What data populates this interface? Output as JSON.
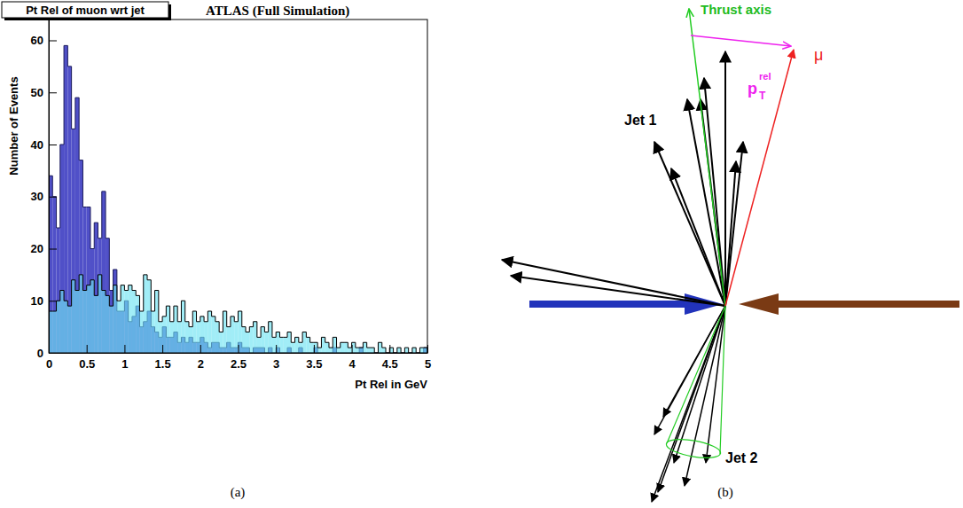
{
  "chart_data": {
    "type": "histogram",
    "title": "Pt Rel of muon wrt jet",
    "annotations": [
      "ATLAS (Full Simulation)"
    ],
    "x_label": "Pt Rel in GeV",
    "y_label": "Number of Events",
    "bins": [
      0,
      0.05,
      0.1,
      0.15,
      0.2,
      0.25,
      0.3,
      0.35,
      0.4,
      0.45,
      0.5,
      0.55,
      0.6,
      0.65,
      0.7,
      0.75,
      0.8,
      0.85,
      0.9,
      0.95,
      1,
      1.05,
      1.1,
      1.15,
      1.2,
      1.25,
      1.3,
      1.35,
      1.4,
      1.45,
      1.5,
      1.55,
      1.6,
      1.65,
      1.7,
      1.75,
      1.8,
      1.85,
      1.9,
      1.95,
      2,
      2.05,
      2.1,
      2.15,
      2.2,
      2.25,
      2.3,
      2.35,
      2.4,
      2.45,
      2.5,
      2.55,
      2.6,
      2.65,
      2.7,
      2.75,
      2.8,
      2.85,
      2.9,
      2.95,
      3,
      3.05,
      3.1,
      3.15,
      3.2,
      3.25,
      3.3,
      3.35,
      3.4,
      3.45,
      3.5,
      3.55,
      3.6,
      3.65,
      3.7,
      3.75,
      3.8,
      3.85,
      3.9,
      3.95,
      4,
      4.05,
      4.1,
      4.15,
      4.2,
      4.25,
      4.3,
      4.35,
      4.4,
      4.45,
      4.5,
      4.55,
      4.6,
      4.65,
      4.7,
      4.75,
      4.8,
      4.85,
      4.9,
      4.95,
      5
    ],
    "series": [
      {
        "color": "#5050c8",
        "values": [
          34,
          30,
          24,
          40,
          59,
          55,
          43,
          49,
          37,
          28,
          28,
          20,
          25,
          22,
          31,
          22,
          12,
          16,
          8,
          8,
          10,
          6,
          7,
          9,
          5,
          6,
          8,
          5,
          4,
          3,
          5,
          3,
          3,
          4,
          2,
          3,
          2,
          3,
          2,
          2,
          3,
          2,
          1,
          2,
          2,
          1,
          1,
          2,
          1,
          1,
          2,
          1,
          1,
          0,
          1,
          1,
          1,
          0,
          1,
          0,
          1,
          0,
          0,
          1,
          0,
          0,
          1,
          0,
          0,
          0,
          1,
          0,
          0,
          0,
          0,
          1,
          0,
          0,
          0,
          0,
          0,
          0,
          1,
          0,
          0,
          0,
          0,
          0,
          0,
          0,
          0,
          0,
          0,
          0,
          0,
          0,
          0,
          0,
          0,
          1
        ]
      },
      {
        "color": "#6fe3f2",
        "values": [
          8,
          8,
          10,
          12,
          10,
          9,
          14,
          12,
          15,
          12,
          13,
          14,
          11,
          15,
          12,
          11,
          9,
          13,
          10,
          13,
          12,
          13,
          12,
          11,
          8,
          15,
          14,
          8,
          12,
          6,
          7,
          9,
          6,
          9,
          6,
          10,
          6,
          5,
          8,
          6,
          7,
          6,
          8,
          7,
          6,
          4,
          8,
          5,
          7,
          6,
          8,
          5,
          4,
          5,
          6,
          3,
          5,
          4,
          6,
          3,
          4,
          3,
          3,
          4,
          2,
          3,
          2,
          4,
          3,
          2,
          2,
          1,
          3,
          2,
          1,
          3,
          1,
          2,
          2,
          1,
          2,
          1,
          1,
          2,
          1,
          1,
          0,
          2,
          1,
          0,
          1,
          0,
          1,
          0,
          1,
          0,
          1,
          0,
          1,
          1
        ]
      }
    ],
    "xlim": [
      0,
      5
    ],
    "xticks": [
      0,
      0.5,
      1,
      1.5,
      2,
      2.5,
      3,
      3.5,
      4,
      4.5,
      5
    ],
    "ylim": [
      0,
      64
    ],
    "yticks": [
      0,
      10,
      20,
      30,
      40,
      50,
      60
    ],
    "grid": false
  },
  "diagram": {
    "thrust_axis_label": "Thrust axis",
    "jet1_label": "Jet 1",
    "jet2_label": "Jet 2",
    "muon_label": "μ",
    "ptrel_label": {
      "base": "p",
      "subscript": "T",
      "superscript": "rel"
    }
  },
  "panel_labels": [
    "(a)",
    "(b)"
  ]
}
